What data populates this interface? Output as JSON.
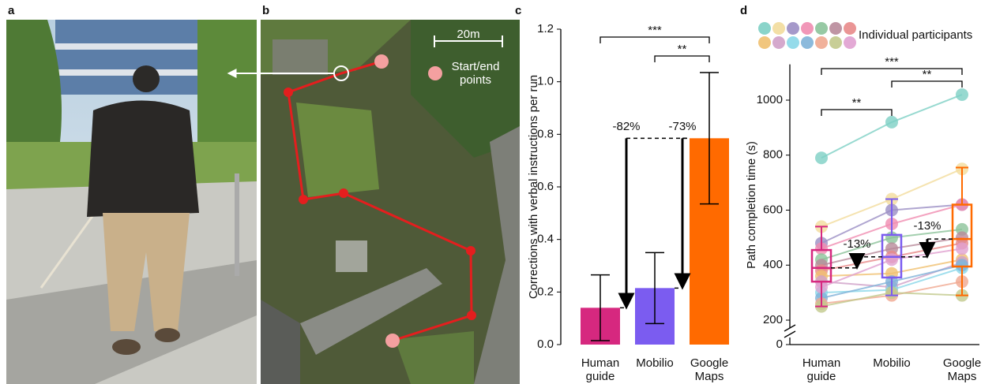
{
  "panels": {
    "a": {
      "label": "a"
    },
    "b": {
      "label": "b",
      "scale_label": "20m",
      "legend": "Start/end points"
    }
  },
  "chart_data": [
    {
      "type": "bar",
      "panel_label": "c",
      "y_label": "Corrections with verbal instructions per run",
      "categories": [
        "Human guide",
        "Mobilio",
        "Google Maps"
      ],
      "values": [
        0.14,
        0.215,
        0.785
      ],
      "errors": [
        0.125,
        0.135,
        0.25
      ],
      "colors": [
        "#d6287f",
        "#7b5cf0",
        "#ff6a00"
      ],
      "ylim": [
        0,
        1.2
      ],
      "yticks": [
        {
          "value": 0,
          "label": "0.0"
        },
        0.2,
        0.4,
        0.6,
        0.8,
        {
          "value": 1,
          "label": "1.0"
        },
        1.2
      ],
      "significance": [
        "***",
        "**"
      ],
      "change_labels": [
        "-82%",
        "-73%"
      ]
    },
    {
      "type": "box",
      "panel_label": "d",
      "y_label": "Path completion time (s)",
      "categories": [
        "Human guide",
        "Mobilio",
        "Google Maps"
      ],
      "colors": [
        "#d6287f",
        "#7b5cf0",
        "#ff6a00"
      ],
      "boxes": [
        {
          "min": 250,
          "q1": 340,
          "median": 390,
          "q3": 455,
          "max": 540
        },
        {
          "min": 290,
          "q1": 355,
          "median": 430,
          "q3": 510,
          "max": 640
        },
        {
          "min": 290,
          "q1": 395,
          "median": 495,
          "q3": 620,
          "max": 755
        }
      ],
      "ylim": [
        200,
        1130
      ],
      "yticks": [
        200,
        400,
        600,
        800,
        1000
      ],
      "broken_axis_tick": 0,
      "legend": "Individual participants",
      "participants": [
        {
          "color": "#7dcfc4",
          "values": [
            790,
            920,
            1020
          ]
        },
        {
          "color": "#f2dc9c",
          "values": [
            540,
            640,
            750
          ]
        },
        {
          "color": "#9b8ec4",
          "values": [
            480,
            600,
            620
          ]
        },
        {
          "color": "#f08cb0",
          "values": [
            460,
            550,
            620
          ]
        },
        {
          "color": "#8cc39a",
          "values": [
            420,
            500,
            530
          ]
        },
        {
          "color": "#b88a9a",
          "values": [
            400,
            460,
            500
          ]
        },
        {
          "color": "#e88a8a",
          "values": [
            380,
            430,
            480
          ]
        },
        {
          "color": "#f0c070",
          "values": [
            360,
            370,
            420
          ]
        },
        {
          "color": "#d0a0c8",
          "values": [
            340,
            320,
            410
          ]
        },
        {
          "color": "#8ad7e8",
          "values": [
            300,
            310,
            390
          ]
        },
        {
          "color": "#7fb2d8",
          "values": [
            280,
            340,
            400
          ]
        },
        {
          "color": "#f0a890",
          "values": [
            260,
            290,
            340
          ]
        },
        {
          "color": "#c2c98c",
          "values": [
            250,
            300,
            290
          ]
        },
        {
          "color": "#e0a0d0",
          "values": [
            320,
            420,
            460
          ]
        }
      ],
      "significance": [
        "***",
        "**",
        "**"
      ],
      "change_labels": [
        "-13%",
        "-13%"
      ]
    }
  ]
}
